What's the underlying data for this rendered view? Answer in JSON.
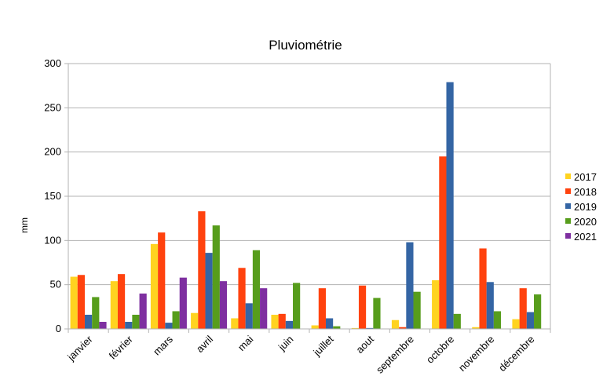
{
  "chart_data": {
    "type": "bar",
    "title": "Pluviométrie",
    "xlabel": "",
    "ylabel": "mm",
    "ylim": [
      0,
      300
    ],
    "yticks": [
      0,
      50,
      100,
      150,
      200,
      250,
      300
    ],
    "grid": "horizontal",
    "legend_position": "right",
    "categories": [
      "janvier",
      "février",
      "mars",
      "avril",
      "mai",
      "juin",
      "juillet",
      "aout",
      "septembre",
      "octobre",
      "novembre",
      "décembre"
    ],
    "series": [
      {
        "name": "2017",
        "color": "#ffd320",
        "values": [
          59,
          54,
          96,
          18,
          12,
          16,
          4,
          1,
          10,
          55,
          2,
          11
        ]
      },
      {
        "name": "2018",
        "color": "#ff420e",
        "values": [
          61,
          62,
          109,
          133,
          69,
          17,
          46,
          49,
          2,
          195,
          91,
          46
        ]
      },
      {
        "name": "2019",
        "color": "#3465a4",
        "values": [
          16,
          8,
          7,
          86,
          29,
          9,
          12,
          1,
          98,
          279,
          53,
          19
        ]
      },
      {
        "name": "2020",
        "color": "#579d1c",
        "values": [
          36,
          16,
          20,
          117,
          89,
          52,
          3,
          35,
          42,
          17,
          20,
          39
        ]
      },
      {
        "name": "2021",
        "color": "#7e2fa0",
        "values": [
          8,
          40,
          58,
          54,
          46,
          null,
          null,
          null,
          null,
          null,
          null,
          null
        ]
      }
    ]
  }
}
